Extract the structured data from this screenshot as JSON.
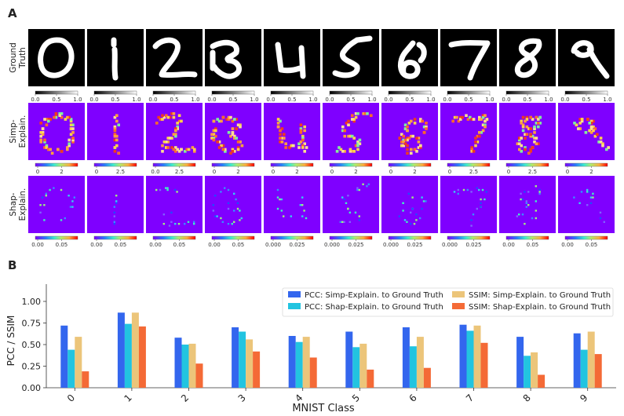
{
  "panel_a": {
    "label": "A",
    "row_labels": [
      "Ground\nTruth",
      "Simp-\nExplain.",
      "Shap-\nExplain."
    ],
    "colorbar_ticks": {
      "ground_truth": [
        [
          "0.0",
          "0.5",
          "1.0"
        ],
        [
          "0.0",
          "0.5",
          "1.0"
        ],
        [
          "0.0",
          "0.5",
          "1.0"
        ],
        [
          "0.0",
          "0.5",
          "1.0"
        ],
        [
          "0.0",
          "0.5",
          "1.0"
        ],
        [
          "0.0",
          "0.5",
          "1.0"
        ],
        [
          "0.0",
          "0.5",
          "1.0"
        ],
        [
          "0.0",
          "0.5",
          "1.0"
        ],
        [
          "0.0",
          "0.5",
          "1.0"
        ],
        [
          "0.0",
          "0.5",
          "1.0"
        ]
      ],
      "simp_explain": [
        [
          "0",
          "2"
        ],
        [
          "0",
          "2.5"
        ],
        [
          "0.0",
          "2.5"
        ],
        [
          "0",
          "2"
        ],
        [
          "0",
          "2"
        ],
        [
          "0",
          "2"
        ],
        [
          "0",
          "2"
        ],
        [
          "0",
          "2.5"
        ],
        [
          "0",
          "2.5"
        ],
        [
          "0",
          "2"
        ]
      ],
      "shap_explain": [
        [
          "0.00",
          "0.05"
        ],
        [
          "0.00",
          "0.05"
        ],
        [
          "0.00",
          "0.05"
        ],
        [
          "0.00",
          "0.05"
        ],
        [
          "0.000",
          "0.025"
        ],
        [
          "0.000",
          "0.025"
        ],
        [
          "0.000",
          "0.025"
        ],
        [
          "0.000",
          "0.025"
        ],
        [
          "0.00",
          "0.05"
        ],
        [
          "0.00",
          "0.05"
        ]
      ]
    },
    "colors": {
      "explain_background": "#7f00ff",
      "ground_truth_background": "#000000"
    }
  },
  "panel_b": {
    "label": "B"
  },
  "chart_data": {
    "type": "bar",
    "categories": [
      "0",
      "1",
      "2",
      "3",
      "4",
      "5",
      "6",
      "7",
      "8",
      "9"
    ],
    "xlabel": "MNIST Class",
    "ylabel": "PCC / SSIM",
    "ylim": [
      0,
      1.2
    ],
    "yticks": [
      "0.00",
      "0.25",
      "0.50",
      "0.75",
      "1.00"
    ],
    "grid": false,
    "legend_position": "top-right",
    "series": [
      {
        "name": "PCC: Simp-Explain. to Ground Truth",
        "color": "#3366ee",
        "values": [
          0.72,
          0.87,
          0.58,
          0.7,
          0.6,
          0.65,
          0.7,
          0.73,
          0.59,
          0.63
        ]
      },
      {
        "name": "PCC: Shap-Explain. to Ground Truth",
        "color": "#22c4e0",
        "values": [
          0.44,
          0.74,
          0.5,
          0.65,
          0.53,
          0.47,
          0.48,
          0.66,
          0.37,
          0.44
        ]
      },
      {
        "name": "SSIM: Simp-Explain. to Ground Truth",
        "color": "#ecc57a",
        "values": [
          0.59,
          0.87,
          0.51,
          0.56,
          0.59,
          0.51,
          0.59,
          0.72,
          0.41,
          0.65
        ]
      },
      {
        "name": "SSIM: Shap-Explain. to Ground Truth",
        "color": "#f46a36",
        "values": [
          0.19,
          0.71,
          0.28,
          0.42,
          0.35,
          0.21,
          0.23,
          0.52,
          0.15,
          0.39
        ]
      }
    ]
  }
}
